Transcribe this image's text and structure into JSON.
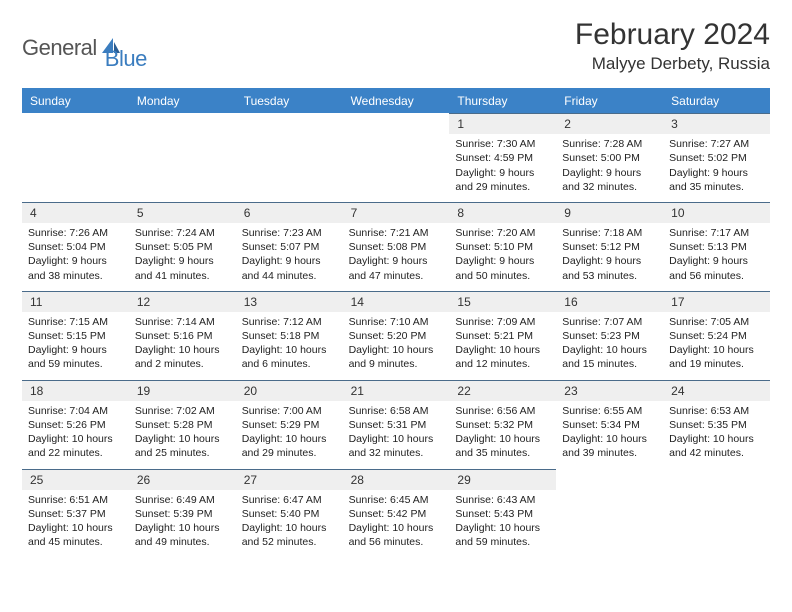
{
  "brand": {
    "word1": "General",
    "word2": "Blue"
  },
  "title": "February 2024",
  "location": "Malyye Derbety, Russia",
  "colors": {
    "header_bg": "#3b82c7",
    "daybar_bg": "#efefef",
    "daybar_border": "#4a6b8a",
    "brand_blue": "#3b7dbf"
  },
  "dow": [
    "Sunday",
    "Monday",
    "Tuesday",
    "Wednesday",
    "Thursday",
    "Friday",
    "Saturday"
  ],
  "weeks": [
    [
      null,
      null,
      null,
      null,
      {
        "n": "1",
        "sr": "Sunrise: 7:30 AM",
        "ss": "Sunset: 4:59 PM",
        "dl": "Daylight: 9 hours and 29 minutes."
      },
      {
        "n": "2",
        "sr": "Sunrise: 7:28 AM",
        "ss": "Sunset: 5:00 PM",
        "dl": "Daylight: 9 hours and 32 minutes."
      },
      {
        "n": "3",
        "sr": "Sunrise: 7:27 AM",
        "ss": "Sunset: 5:02 PM",
        "dl": "Daylight: 9 hours and 35 minutes."
      }
    ],
    [
      {
        "n": "4",
        "sr": "Sunrise: 7:26 AM",
        "ss": "Sunset: 5:04 PM",
        "dl": "Daylight: 9 hours and 38 minutes."
      },
      {
        "n": "5",
        "sr": "Sunrise: 7:24 AM",
        "ss": "Sunset: 5:05 PM",
        "dl": "Daylight: 9 hours and 41 minutes."
      },
      {
        "n": "6",
        "sr": "Sunrise: 7:23 AM",
        "ss": "Sunset: 5:07 PM",
        "dl": "Daylight: 9 hours and 44 minutes."
      },
      {
        "n": "7",
        "sr": "Sunrise: 7:21 AM",
        "ss": "Sunset: 5:08 PM",
        "dl": "Daylight: 9 hours and 47 minutes."
      },
      {
        "n": "8",
        "sr": "Sunrise: 7:20 AM",
        "ss": "Sunset: 5:10 PM",
        "dl": "Daylight: 9 hours and 50 minutes."
      },
      {
        "n": "9",
        "sr": "Sunrise: 7:18 AM",
        "ss": "Sunset: 5:12 PM",
        "dl": "Daylight: 9 hours and 53 minutes."
      },
      {
        "n": "10",
        "sr": "Sunrise: 7:17 AM",
        "ss": "Sunset: 5:13 PM",
        "dl": "Daylight: 9 hours and 56 minutes."
      }
    ],
    [
      {
        "n": "11",
        "sr": "Sunrise: 7:15 AM",
        "ss": "Sunset: 5:15 PM",
        "dl": "Daylight: 9 hours and 59 minutes."
      },
      {
        "n": "12",
        "sr": "Sunrise: 7:14 AM",
        "ss": "Sunset: 5:16 PM",
        "dl": "Daylight: 10 hours and 2 minutes."
      },
      {
        "n": "13",
        "sr": "Sunrise: 7:12 AM",
        "ss": "Sunset: 5:18 PM",
        "dl": "Daylight: 10 hours and 6 minutes."
      },
      {
        "n": "14",
        "sr": "Sunrise: 7:10 AM",
        "ss": "Sunset: 5:20 PM",
        "dl": "Daylight: 10 hours and 9 minutes."
      },
      {
        "n": "15",
        "sr": "Sunrise: 7:09 AM",
        "ss": "Sunset: 5:21 PM",
        "dl": "Daylight: 10 hours and 12 minutes."
      },
      {
        "n": "16",
        "sr": "Sunrise: 7:07 AM",
        "ss": "Sunset: 5:23 PM",
        "dl": "Daylight: 10 hours and 15 minutes."
      },
      {
        "n": "17",
        "sr": "Sunrise: 7:05 AM",
        "ss": "Sunset: 5:24 PM",
        "dl": "Daylight: 10 hours and 19 minutes."
      }
    ],
    [
      {
        "n": "18",
        "sr": "Sunrise: 7:04 AM",
        "ss": "Sunset: 5:26 PM",
        "dl": "Daylight: 10 hours and 22 minutes."
      },
      {
        "n": "19",
        "sr": "Sunrise: 7:02 AM",
        "ss": "Sunset: 5:28 PM",
        "dl": "Daylight: 10 hours and 25 minutes."
      },
      {
        "n": "20",
        "sr": "Sunrise: 7:00 AM",
        "ss": "Sunset: 5:29 PM",
        "dl": "Daylight: 10 hours and 29 minutes."
      },
      {
        "n": "21",
        "sr": "Sunrise: 6:58 AM",
        "ss": "Sunset: 5:31 PM",
        "dl": "Daylight: 10 hours and 32 minutes."
      },
      {
        "n": "22",
        "sr": "Sunrise: 6:56 AM",
        "ss": "Sunset: 5:32 PM",
        "dl": "Daylight: 10 hours and 35 minutes."
      },
      {
        "n": "23",
        "sr": "Sunrise: 6:55 AM",
        "ss": "Sunset: 5:34 PM",
        "dl": "Daylight: 10 hours and 39 minutes."
      },
      {
        "n": "24",
        "sr": "Sunrise: 6:53 AM",
        "ss": "Sunset: 5:35 PM",
        "dl": "Daylight: 10 hours and 42 minutes."
      }
    ],
    [
      {
        "n": "25",
        "sr": "Sunrise: 6:51 AM",
        "ss": "Sunset: 5:37 PM",
        "dl": "Daylight: 10 hours and 45 minutes."
      },
      {
        "n": "26",
        "sr": "Sunrise: 6:49 AM",
        "ss": "Sunset: 5:39 PM",
        "dl": "Daylight: 10 hours and 49 minutes."
      },
      {
        "n": "27",
        "sr": "Sunrise: 6:47 AM",
        "ss": "Sunset: 5:40 PM",
        "dl": "Daylight: 10 hours and 52 minutes."
      },
      {
        "n": "28",
        "sr": "Sunrise: 6:45 AM",
        "ss": "Sunset: 5:42 PM",
        "dl": "Daylight: 10 hours and 56 minutes."
      },
      {
        "n": "29",
        "sr": "Sunrise: 6:43 AM",
        "ss": "Sunset: 5:43 PM",
        "dl": "Daylight: 10 hours and 59 minutes."
      },
      null,
      null
    ]
  ]
}
